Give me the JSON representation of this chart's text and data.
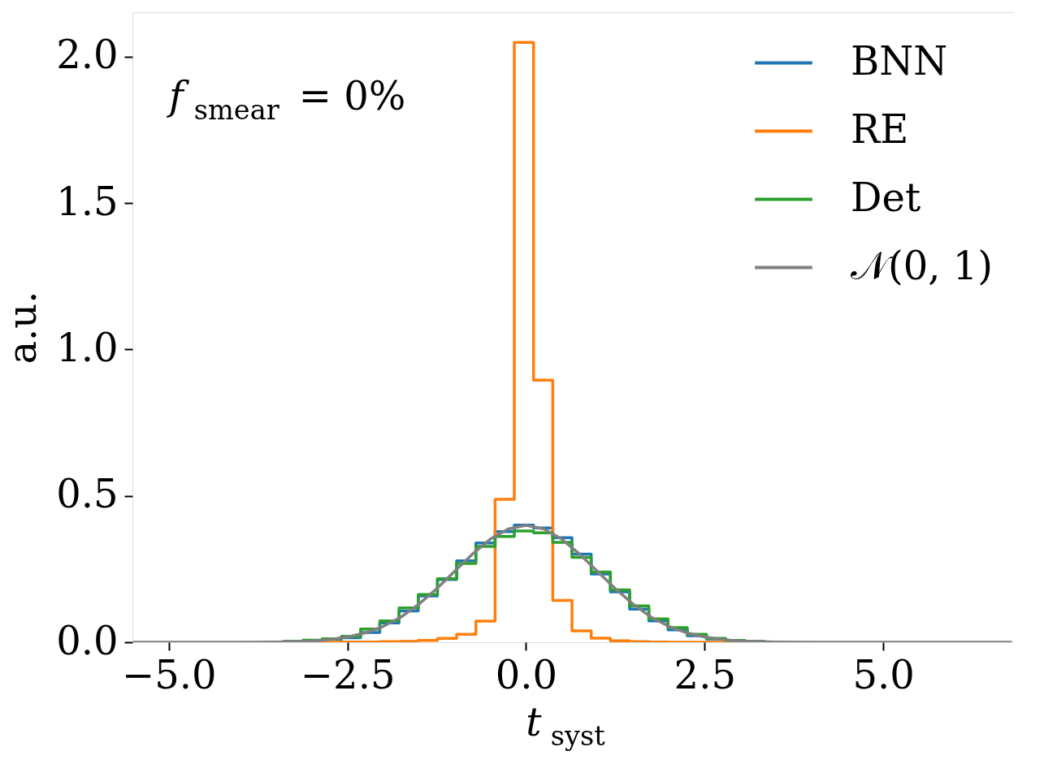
{
  "chart_data": {
    "type": "histogram",
    "bins": [
      -3.661,
      -3.392,
      -3.123,
      -2.854,
      -2.585,
      -2.316,
      -2.047,
      -1.778,
      -1.509,
      -1.24,
      -0.971,
      -0.702,
      -0.433,
      -0.164,
      0.105,
      0.374,
      0.643,
      0.912,
      1.181,
      1.45,
      1.719,
      1.988,
      2.257,
      2.526,
      2.795,
      3.064,
      3.333
    ],
    "series": [
      {
        "name": "BNN",
        "color": "#1f77b4",
        "values": [
          0.001,
          0.002,
          0.005,
          0.01,
          0.015,
          0.033,
          0.066,
          0.107,
          0.158,
          0.214,
          0.278,
          0.339,
          0.378,
          0.4,
          0.39,
          0.357,
          0.301,
          0.233,
          0.172,
          0.113,
          0.073,
          0.042,
          0.022,
          0.011,
          0.005,
          0.002
        ]
      },
      {
        "name": "RE",
        "color": "#ff7f0e",
        "values": [
          0,
          0,
          0,
          0,
          0.001,
          0.001,
          0.002,
          0.003,
          0.006,
          0.013,
          0.027,
          0.072,
          0.488,
          2.049,
          0.895,
          0.143,
          0.039,
          0.014,
          0.005,
          0.002,
          0.001,
          0,
          0,
          0,
          0,
          0
        ]
      },
      {
        "name": "Det",
        "color": "#2ca02c",
        "values": [
          0.001,
          0.003,
          0.007,
          0.012,
          0.02,
          0.045,
          0.073,
          0.117,
          0.163,
          0.217,
          0.269,
          0.327,
          0.361,
          0.38,
          0.374,
          0.341,
          0.29,
          0.24,
          0.179,
          0.124,
          0.08,
          0.05,
          0.027,
          0.013,
          0.006,
          0.003
        ]
      },
      {
        "name": "𝒩(0, 1)",
        "color": "#808080",
        "type": "line",
        "x": [
          -5.5,
          -4.0,
          -3.5,
          -3.0,
          -2.75,
          -2.5,
          -2.25,
          -2.0,
          -1.75,
          -1.5,
          -1.25,
          -1.0,
          -0.75,
          -0.5,
          -0.25,
          0.0,
          0.25,
          0.5,
          0.75,
          1.0,
          1.25,
          1.5,
          1.75,
          2.0,
          2.25,
          2.5,
          2.75,
          3.0,
          3.5,
          4.0,
          6.8
        ],
        "values": [
          0.0,
          0.0,
          0.001,
          0.004,
          0.009,
          0.018,
          0.032,
          0.054,
          0.086,
          0.13,
          0.183,
          0.242,
          0.301,
          0.352,
          0.387,
          0.399,
          0.387,
          0.352,
          0.301,
          0.242,
          0.183,
          0.13,
          0.086,
          0.054,
          0.032,
          0.018,
          0.009,
          0.004,
          0.001,
          0.0,
          0.0
        ]
      }
    ],
    "xlabel": "t$_{syst}$",
    "ylabel": "a.u.",
    "annotations": [
      "f$_{smear}$ = 0%"
    ],
    "xlim": [
      -5.51,
      6.83
    ],
    "ylim": [
      0,
      2.152
    ],
    "xticks": [
      {
        "value": -5,
        "label": "−5.0"
      },
      {
        "value": -2.5,
        "label": "−2.5"
      },
      {
        "value": 0,
        "label": "0.0"
      },
      {
        "value": 2.5,
        "label": "2.5"
      },
      {
        "value": 5,
        "label": "5.0"
      }
    ],
    "yticks": [
      {
        "value": 0,
        "label": "0.0"
      },
      {
        "value": 0.5,
        "label": "0.5"
      },
      {
        "value": 1,
        "label": "1.0"
      },
      {
        "value": 1.5,
        "label": "1.5"
      },
      {
        "value": 2,
        "label": "2.0"
      }
    ],
    "legend": "top right",
    "grid": false
  }
}
